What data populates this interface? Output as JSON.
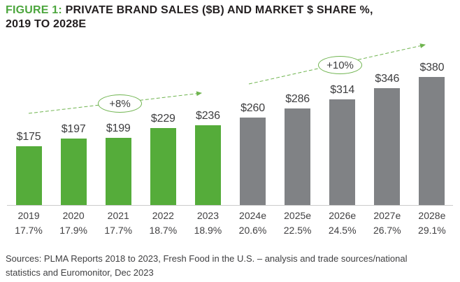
{
  "title": {
    "figure_label": "FIGURE 1:",
    "line1_rest": "PRIVATE BRAND SALES ($B) AND MARKET $ SHARE %,",
    "line2": "2019 TO 2028E"
  },
  "chart_data": {
    "type": "bar",
    "title": "PRIVATE BRAND SALES ($B) AND MARKET $ SHARE %, 2019 TO 2028E",
    "xlabel": "",
    "ylabel": "Private brand sales ($B)",
    "ylim": [
      0,
      400
    ],
    "grid": false,
    "legend": "none",
    "categories": [
      "2019",
      "2020",
      "2021",
      "2022",
      "2023",
      "2024e",
      "2025e",
      "2026e",
      "2027e",
      "2028e"
    ],
    "series": [
      {
        "name": "Private brand sales ($B)",
        "values": [
          175,
          197,
          199,
          229,
          236,
          260,
          286,
          314,
          346,
          380
        ]
      },
      {
        "name": "Market $ share %",
        "values": [
          17.7,
          17.9,
          17.7,
          18.7,
          18.9,
          20.6,
          22.5,
          24.5,
          26.7,
          29.1
        ]
      }
    ],
    "value_labels": [
      "$175",
      "$197",
      "$199",
      "$229",
      "$236",
      "$260",
      "$286",
      "$314",
      "$346",
      "$380"
    ],
    "share_labels": [
      "17.7%",
      "17.9%",
      "17.7%",
      "18.7%",
      "18.9%",
      "20.6%",
      "22.5%",
      "24.5%",
      "26.7%",
      "29.1%"
    ],
    "actual_count": 5,
    "annotations": [
      {
        "label": "+8%",
        "range": "2019-2023"
      },
      {
        "label": "+10%",
        "range": "2024e-2028e"
      }
    ]
  },
  "colors": {
    "actual_bar": "#55ac3a",
    "estimate_bar": "#808285",
    "accent_green": "#4ca63d",
    "arrow_green": "#6fb44f",
    "axis_line": "#cbcbcb",
    "text_dark": "#231f20",
    "text_gray": "#414042"
  },
  "source": {
    "line1": "Sources: PLMA Reports 2018 to 2023, Fresh Food in the U.S. – analysis and trade sources/national",
    "line2": "statistics and Euromonitor, Dec 2023"
  }
}
